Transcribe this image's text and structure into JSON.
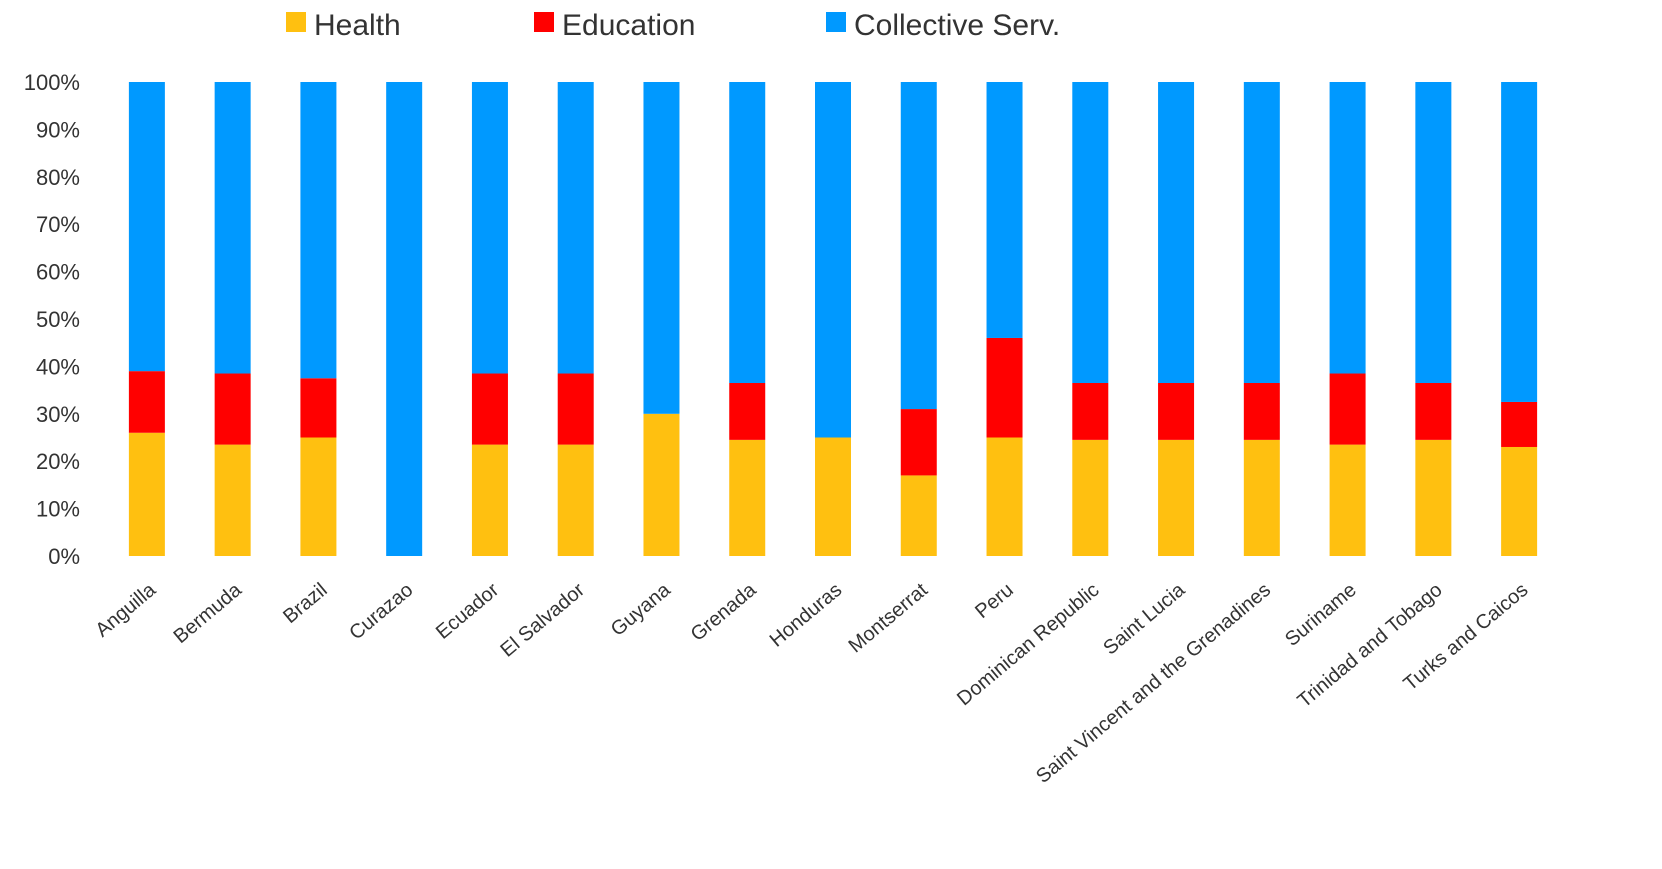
{
  "chart_data": {
    "type": "bar",
    "stacked": true,
    "title": "",
    "xlabel": "",
    "ylabel": "",
    "ylim": [
      0,
      100
    ],
    "y_ticks": [
      "0%",
      "10%",
      "20%",
      "30%",
      "40%",
      "50%",
      "60%",
      "70%",
      "80%",
      "90%",
      "100%"
    ],
    "grid": false,
    "legend_position": "top",
    "categories": [
      "Anguilla",
      "Bermuda",
      "Brazil",
      "Curazao",
      "Ecuador",
      "El Salvador",
      "Guyana",
      "Grenada",
      "Honduras",
      "Montserrat",
      "Peru",
      "Dominican Republic",
      "Saint Lucia",
      "Saint Vincent and the Grenadines",
      "Suriname",
      "Trinidad and Tobago",
      "Turks and Caicos"
    ],
    "series": [
      {
        "name": "Health",
        "color": "#FFC010",
        "values": [
          26,
          23.5,
          25,
          0,
          23.5,
          23.5,
          30,
          24.5,
          25,
          17,
          25,
          24.5,
          24.5,
          24.5,
          23.5,
          24.5,
          23
        ]
      },
      {
        "name": "Education",
        "color": "#FF0000",
        "values": [
          13,
          15,
          12.5,
          0,
          15,
          15,
          0,
          12,
          0,
          14,
          21,
          12,
          12,
          12,
          15,
          12,
          9.5
        ]
      },
      {
        "name": "Collective Serv.",
        "color": "#0099FF",
        "values": [
          61,
          61.5,
          62.5,
          100,
          61.5,
          61.5,
          70,
          63.5,
          75,
          69,
          54,
          63.5,
          63.5,
          63.5,
          61.5,
          63.5,
          67.5
        ]
      }
    ]
  }
}
